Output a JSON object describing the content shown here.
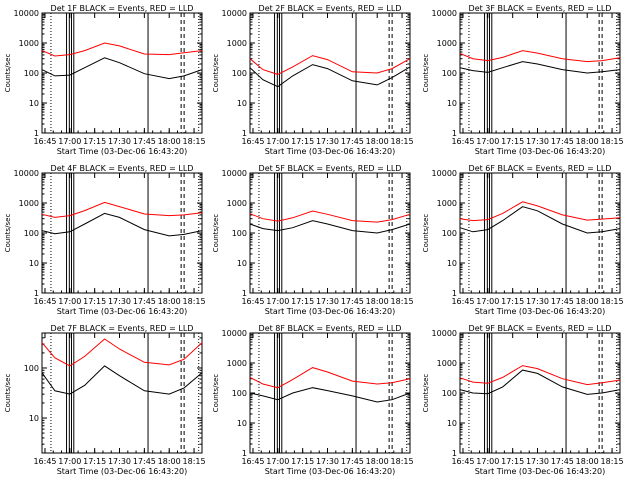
{
  "chart_data": [
    {
      "type": "line",
      "title": "Det 1F BLACK = Events, RED = LLD",
      "xlabel": "Start Time (03-Dec-06 16:43:20)",
      "ylabel": "Counts/sec",
      "yscale": "log",
      "ylim": [
        1,
        10000
      ],
      "xlim": [
        16.72,
        18.33
      ],
      "x_ticks": [
        "16:45",
        "17:00",
        "17:15",
        "17:30",
        "17:45",
        "18:00",
        "18:15"
      ],
      "y_ticks": [
        "1",
        "10",
        "100",
        "1000",
        "10000"
      ],
      "series": [
        {
          "color": "#ff0000",
          "x": [
            16.72,
            16.85,
            17.0,
            17.15,
            17.35,
            17.5,
            17.75,
            18.0,
            18.15,
            18.33
          ],
          "values": [
            560,
            370,
            410,
            560,
            1000,
            800,
            430,
            410,
            470,
            560
          ]
        },
        {
          "color": "#000000",
          "x": [
            16.72,
            16.85,
            17.0,
            17.15,
            17.35,
            17.5,
            17.75,
            18.0,
            18.15,
            18.33
          ],
          "values": [
            130,
            80,
            85,
            150,
            320,
            220,
            95,
            65,
            80,
            130
          ]
        }
      ]
    },
    {
      "type": "line",
      "title": "Det 2F BLACK = Events, RED = LLD",
      "xlabel": "Start Time (03-Dec-06 16:43:20)",
      "ylabel": "Counts/sec",
      "yscale": "log",
      "ylim": [
        1,
        10000
      ],
      "xlim": [
        16.72,
        18.33
      ],
      "x_ticks": [
        "16:45",
        "17:00",
        "17:15",
        "17:30",
        "17:45",
        "18:00",
        "18:15"
      ],
      "y_ticks": [
        "1",
        "10",
        "100",
        "1000",
        "10000"
      ],
      "series": [
        {
          "color": "#ff0000",
          "x": [
            16.72,
            16.85,
            17.0,
            17.15,
            17.35,
            17.5,
            17.75,
            18.0,
            18.15,
            18.33
          ],
          "values": [
            300,
            130,
            90,
            160,
            380,
            280,
            110,
            100,
            140,
            300
          ]
        },
        {
          "color": "#000000",
          "x": [
            16.72,
            16.85,
            17.0,
            17.15,
            17.35,
            17.5,
            17.75,
            18.0,
            18.15,
            18.33
          ],
          "values": [
            150,
            60,
            35,
            80,
            190,
            140,
            55,
            40,
            70,
            160
          ]
        }
      ]
    },
    {
      "type": "line",
      "title": "Det 3F BLACK = Events, RED = LLD",
      "xlabel": "Start Time (03-Dec-06 16:43:20)",
      "ylabel": "Counts/sec",
      "yscale": "log",
      "ylim": [
        1,
        10000
      ],
      "xlim": [
        16.72,
        18.33
      ],
      "x_ticks": [
        "16:45",
        "17:00",
        "17:15",
        "17:30",
        "17:45",
        "18:00",
        "18:15"
      ],
      "y_ticks": [
        "1",
        "10",
        "100",
        "1000",
        "10000"
      ],
      "series": [
        {
          "color": "#ff0000",
          "x": [
            16.72,
            16.85,
            17.0,
            17.15,
            17.35,
            17.5,
            17.75,
            18.0,
            18.15,
            18.33
          ],
          "values": [
            450,
            300,
            260,
            330,
            560,
            460,
            300,
            240,
            260,
            320
          ]
        },
        {
          "color": "#000000",
          "x": [
            16.72,
            16.85,
            17.0,
            17.15,
            17.35,
            17.5,
            17.75,
            18.0,
            18.15,
            18.33
          ],
          "values": [
            150,
            120,
            105,
            150,
            240,
            200,
            130,
            100,
            110,
            130
          ]
        }
      ]
    },
    {
      "type": "line",
      "title": "Det 4F BLACK = Events, RED = LLD",
      "xlabel": "Start Time (03-Dec-06 16:43:20)",
      "ylabel": "Counts/sec",
      "yscale": "log",
      "ylim": [
        1,
        10000
      ],
      "xlim": [
        16.72,
        18.33
      ],
      "x_ticks": [
        "16:45",
        "17:00",
        "17:15",
        "17:30",
        "17:45",
        "18:00",
        "18:15"
      ],
      "y_ticks": [
        "1",
        "10",
        "100",
        "1000",
        "10000"
      ],
      "series": [
        {
          "color": "#ff0000",
          "x": [
            16.72,
            16.85,
            17.0,
            17.15,
            17.35,
            17.5,
            17.75,
            18.0,
            18.15,
            18.33
          ],
          "values": [
            420,
            330,
            380,
            560,
            1050,
            760,
            430,
            380,
            400,
            470
          ]
        },
        {
          "color": "#000000",
          "x": [
            16.72,
            16.85,
            17.0,
            17.15,
            17.35,
            17.5,
            17.75,
            18.0,
            18.15,
            18.33
          ],
          "values": [
            120,
            95,
            110,
            200,
            450,
            330,
            130,
            80,
            90,
            120
          ]
        }
      ]
    },
    {
      "type": "line",
      "title": "Det 5F BLACK = Events, RED = LLD",
      "xlabel": "Start Time (03-Dec-06 16:43:20)",
      "ylabel": "Counts/sec",
      "yscale": "log",
      "ylim": [
        1,
        10000
      ],
      "xlim": [
        16.72,
        18.33
      ],
      "x_ticks": [
        "16:45",
        "17:00",
        "17:15",
        "17:30",
        "17:45",
        "18:00",
        "18:15"
      ],
      "y_ticks": [
        "1",
        "10",
        "100",
        "1000",
        "10000"
      ],
      "series": [
        {
          "color": "#ff0000",
          "x": [
            16.72,
            16.85,
            17.0,
            17.15,
            17.35,
            17.5,
            17.75,
            18.0,
            18.15,
            18.33
          ],
          "values": [
            440,
            300,
            250,
            320,
            540,
            420,
            260,
            230,
            280,
            420
          ]
        },
        {
          "color": "#000000",
          "x": [
            16.72,
            16.85,
            17.0,
            17.15,
            17.35,
            17.5,
            17.75,
            18.0,
            18.15,
            18.33
          ],
          "values": [
            200,
            140,
            120,
            150,
            260,
            200,
            120,
            100,
            130,
            200
          ]
        }
      ]
    },
    {
      "type": "line",
      "title": "Det 6F BLACK = Events, RED = LLD",
      "xlabel": "Start Time (03-Dec-06 16:43:20)",
      "ylabel": "Counts/sec",
      "yscale": "log",
      "ylim": [
        1,
        10000
      ],
      "xlim": [
        16.72,
        18.33
      ],
      "x_ticks": [
        "16:45",
        "17:00",
        "17:15",
        "17:30",
        "17:45",
        "18:00",
        "18:15"
      ],
      "y_ticks": [
        "1",
        "10",
        "100",
        "1000",
        "10000"
      ],
      "series": [
        {
          "color": "#ff0000",
          "x": [
            16.72,
            16.85,
            17.0,
            17.15,
            17.35,
            17.5,
            17.75,
            18.0,
            18.15,
            18.33
          ],
          "values": [
            300,
            260,
            280,
            450,
            1100,
            800,
            400,
            270,
            290,
            320
          ]
        },
        {
          "color": "#000000",
          "x": [
            16.72,
            16.85,
            17.0,
            17.15,
            17.35,
            17.5,
            17.75,
            18.0,
            18.15,
            18.33
          ],
          "values": [
            150,
            110,
            130,
            260,
            750,
            550,
            200,
            100,
            110,
            140
          ]
        }
      ]
    },
    {
      "type": "line",
      "title": "Det 7F BLACK = Events, RED = LLD",
      "xlabel": "Start Time (03-Dec-06 16:43:20)",
      "ylabel": "Counts/sec",
      "yscale": "log",
      "ylim": [
        2,
        500
      ],
      "xlim": [
        16.72,
        18.33
      ],
      "x_ticks": [
        "16:45",
        "17:00",
        "17:15",
        "17:30",
        "17:45",
        "18:00",
        "18:15"
      ],
      "y_ticks": [
        "10",
        "100"
      ],
      "series": [
        {
          "color": "#ff0000",
          "x": [
            16.72,
            16.85,
            17.0,
            17.15,
            17.35,
            17.5,
            17.75,
            18.0,
            18.15,
            18.33
          ],
          "values": [
            320,
            160,
            110,
            170,
            380,
            240,
            130,
            115,
            150,
            320
          ]
        },
        {
          "color": "#000000",
          "x": [
            16.72,
            16.85,
            17.0,
            17.15,
            17.35,
            17.5,
            17.75,
            18.0,
            18.15,
            18.33
          ],
          "values": [
            80,
            35,
            30,
            45,
            110,
            70,
            35,
            30,
            40,
            80
          ]
        }
      ]
    },
    {
      "type": "line",
      "title": "Det 8F BLACK = Events, RED = LLD",
      "xlabel": "Start Time (03-Dec-06 16:43:20)",
      "ylabel": "Counts/sec",
      "yscale": "log",
      "ylim": [
        1,
        10000
      ],
      "xlim": [
        16.72,
        18.33
      ],
      "x_ticks": [
        "16:45",
        "17:00",
        "17:15",
        "17:30",
        "17:45",
        "18:00",
        "18:15"
      ],
      "y_ticks": [
        "1",
        "10",
        "100",
        "1000",
        "10000"
      ],
      "series": [
        {
          "color": "#ff0000",
          "x": [
            16.72,
            16.85,
            17.0,
            17.15,
            17.35,
            17.5,
            17.75,
            18.0,
            18.15,
            18.33
          ],
          "values": [
            330,
            200,
            150,
            280,
            700,
            500,
            250,
            200,
            220,
            300
          ]
        },
        {
          "color": "#000000",
          "x": [
            16.72,
            16.85,
            17.0,
            17.15,
            17.35,
            17.5,
            17.75,
            18.0,
            18.15,
            18.33
          ],
          "values": [
            100,
            80,
            60,
            100,
            150,
            120,
            80,
            50,
            60,
            100
          ]
        }
      ]
    },
    {
      "type": "line",
      "title": "Det 9F BLACK = Events, RED = LLD",
      "xlabel": "Start Time (03-Dec-06 16:43:20)",
      "ylabel": "Counts/sec",
      "yscale": "log",
      "ylim": [
        1,
        10000
      ],
      "xlim": [
        16.72,
        18.33
      ],
      "x_ticks": [
        "16:45",
        "17:00",
        "17:15",
        "17:30",
        "17:45",
        "18:00",
        "18:15"
      ],
      "y_ticks": [
        "1",
        "10",
        "100",
        "1000",
        "10000"
      ],
      "series": [
        {
          "color": "#ff0000",
          "x": [
            16.72,
            16.85,
            17.0,
            17.15,
            17.35,
            17.5,
            17.75,
            18.0,
            18.15,
            18.33
          ],
          "values": [
            320,
            230,
            210,
            330,
            820,
            650,
            300,
            190,
            220,
            270
          ]
        },
        {
          "color": "#000000",
          "x": [
            16.72,
            16.85,
            17.0,
            17.15,
            17.35,
            17.5,
            17.75,
            18.0,
            18.15,
            18.33
          ],
          "values": [
            130,
            100,
            95,
            160,
            580,
            450,
            160,
            90,
            100,
            130
          ]
        }
      ]
    }
  ],
  "markers": {
    "solid_x": [
      16.967,
      16.995,
      17.017,
      17.04,
      17.787
    ],
    "dotted_x": [
      16.72,
      16.81,
      18.297
    ],
    "dashed_x": [
      18.12,
      18.15
    ]
  }
}
